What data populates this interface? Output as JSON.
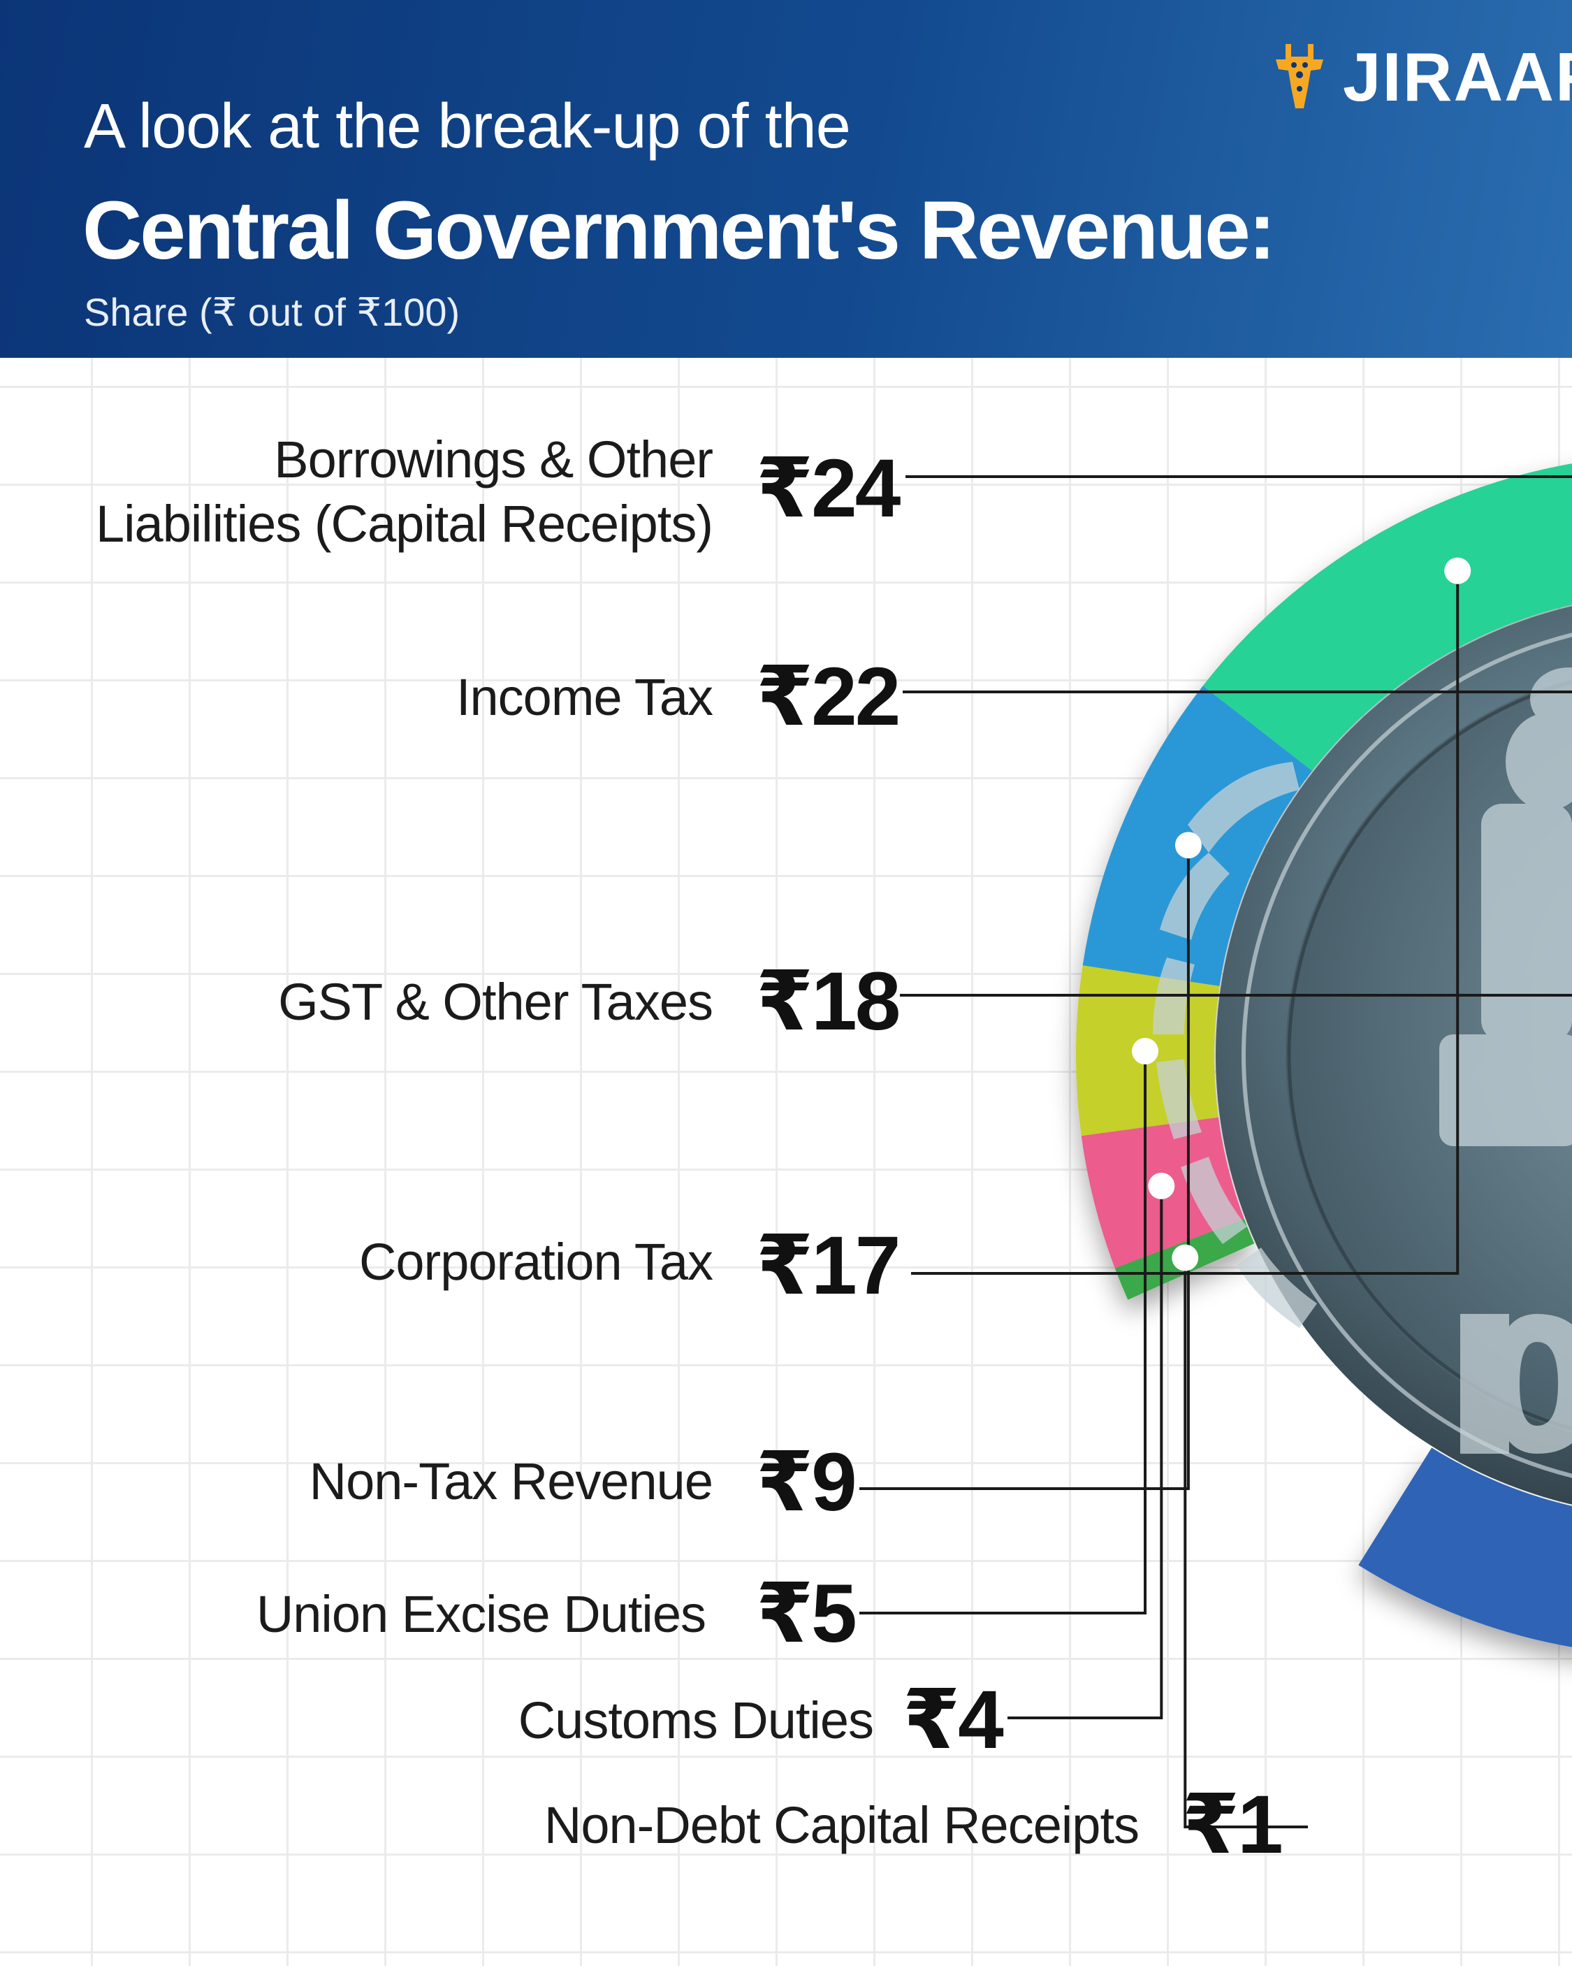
{
  "header": {
    "subtitle_line": "A look at the break-up of the",
    "title": "Central Government's Revenue:",
    "note": "Share (₹ out of ₹100)",
    "logo_text": "JIRAAF",
    "logo_icon": "giraffe-icon"
  },
  "chart_data": {
    "type": "pie",
    "title": "Central Government's Revenue:",
    "subtitle": "Share (₹ out of ₹100)",
    "currency_symbol": "₹",
    "categories": [
      "Borrowings & Other Liabilities (Capital Receipts)",
      "Income Tax",
      "GST & Other Taxes",
      "Corporation Tax",
      "Non-Tax Revenue",
      "Union Excise Duties",
      "Customs Duties",
      "Non-Debt Capital Receipts"
    ],
    "values": [
      24,
      22,
      18,
      17,
      9,
      5,
      4,
      1
    ],
    "value_labels": [
      "₹24",
      "₹22",
      "₹18",
      "₹17",
      "₹9",
      "₹5",
      "₹4",
      "₹1"
    ],
    "colors": [
      "#2f64b6",
      "#f7a823",
      "#5352d1",
      "#25d296",
      "#2c98d6",
      "#c5d029",
      "#ec5b8c",
      "#3aa84a"
    ],
    "legend": "leader-lines-left"
  }
}
